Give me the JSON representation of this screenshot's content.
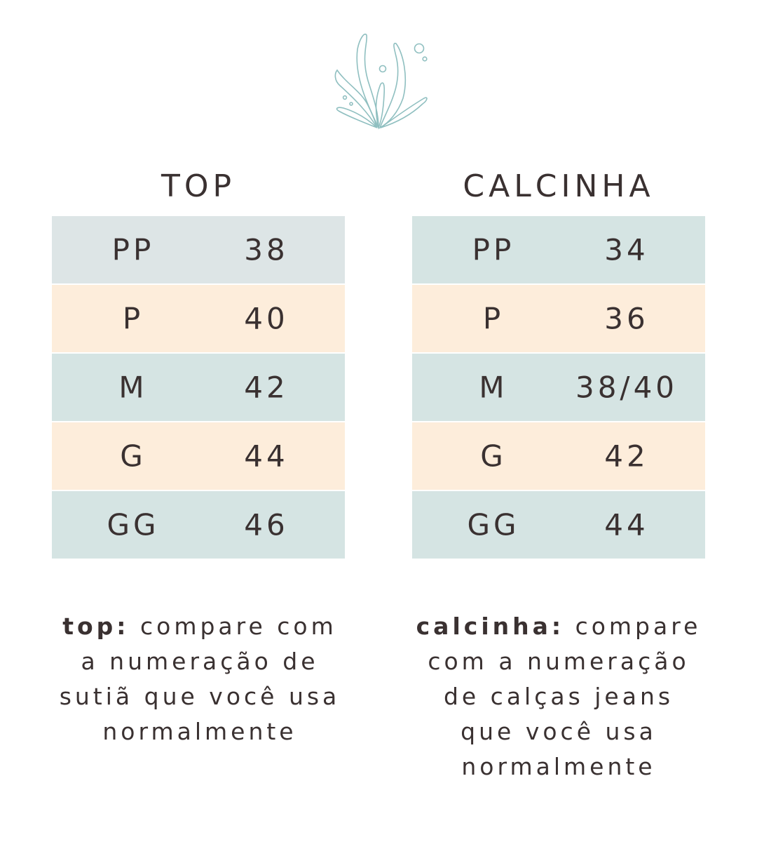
{
  "logo": {
    "icon": "seaweed-icon",
    "color": "#8fbfc0"
  },
  "colors": {
    "blue_row": "#d5e4e3",
    "first_row_top": "#dde5e6",
    "peach_row": "#fdeddb",
    "text": "#3a3131"
  },
  "top": {
    "title": "TOP",
    "rows": [
      {
        "size": "PP",
        "value": "38"
      },
      {
        "size": "P",
        "value": "40"
      },
      {
        "size": "M",
        "value": "42"
      },
      {
        "size": "G",
        "value": "44"
      },
      {
        "size": "GG",
        "value": "46"
      }
    ],
    "caption_bold": "top:",
    "caption_lines": [
      "compare com",
      "a numeração de",
      "sutiã que você usa",
      "normalmente"
    ]
  },
  "calcinha": {
    "title": "CALCINHA",
    "rows": [
      {
        "size": "PP",
        "value": "34"
      },
      {
        "size": "P",
        "value": "36"
      },
      {
        "size": "M",
        "value": "38/40"
      },
      {
        "size": "G",
        "value": "42"
      },
      {
        "size": "GG",
        "value": "44"
      }
    ],
    "caption_bold": "calcinha:",
    "caption_lines": [
      "compare",
      "com a numeração",
      "de calças jeans",
      "que você usa",
      "normalmente"
    ]
  }
}
